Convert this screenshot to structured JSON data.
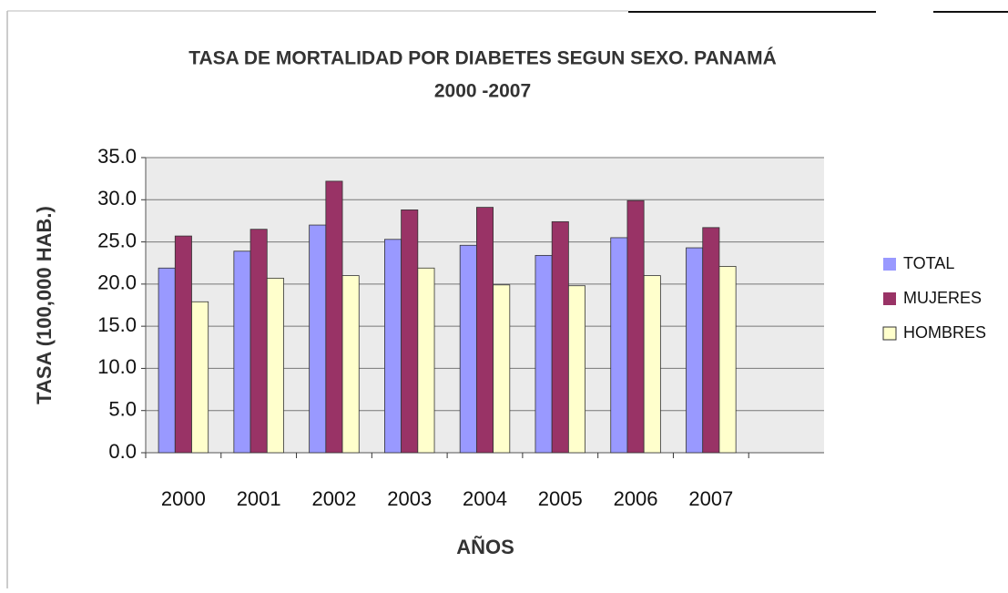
{
  "chart_data": {
    "type": "bar",
    "title": "TASA DE MORTALIDAD POR DIABETES SEGUN SEXO. PANAMÁ",
    "subtitle": "2000 -2007",
    "x_label": "AÑOS",
    "y_label": "TASA (100,000 HAB.)",
    "categories": [
      "2000",
      "2001",
      "2002",
      "2003",
      "2004",
      "2005",
      "2006",
      "2007",
      null
    ],
    "series": [
      {
        "name": "TOTAL",
        "color": "#9999ff",
        "values": [
          21.9,
          23.9,
          27.0,
          25.3,
          24.6,
          23.4,
          25.5,
          24.3,
          null
        ]
      },
      {
        "name": "MUJERES",
        "color": "#993366",
        "values": [
          25.7,
          26.5,
          32.2,
          28.8,
          29.1,
          27.4,
          29.9,
          26.7,
          null
        ]
      },
      {
        "name": "HOMBRES",
        "color": "#ffffcc",
        "values": [
          17.9,
          20.7,
          21.0,
          21.9,
          19.9,
          19.8,
          21.0,
          22.1,
          null
        ]
      }
    ],
    "ylim": [
      0,
      35
    ],
    "yticks": [
      {
        "value": 0,
        "label": "0.0"
      },
      {
        "value": 5,
        "label": "5.0"
      },
      {
        "value": 10,
        "label": "10.0"
      },
      {
        "value": 15,
        "label": "15.0"
      },
      {
        "value": 20,
        "label": "20.0"
      },
      {
        "value": 25,
        "label": "25.0"
      },
      {
        "value": 30,
        "label": "30.0"
      },
      {
        "value": 35,
        "label": "35.0"
      }
    ],
    "grid": true,
    "legend": "right"
  }
}
